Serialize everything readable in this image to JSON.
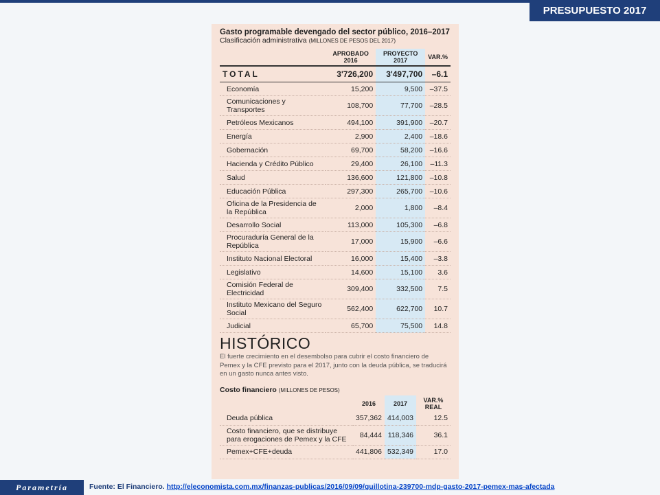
{
  "header": {
    "title": "PRESUPUESTO 2017"
  },
  "table1": {
    "title": "Gasto programable devengado del sector público, 2016–2017",
    "subtitle": "Clasificación administrativa",
    "subtitle_note": "(MILLONES DE PESOS DEL 2017)",
    "columns": [
      "APROBADO 2016",
      "PROYECTO 2017",
      "VAR.%"
    ],
    "total": [
      "TOTAL",
      "3'726,200",
      "3'497,700",
      "–6.1"
    ],
    "rows": [
      [
        "Economía",
        "15,200",
        "9,500",
        "–37.5"
      ],
      [
        "Comunicaciones y Transportes",
        "108,700",
        "77,700",
        "–28.5"
      ],
      [
        "Petróleos Mexicanos",
        "494,100",
        "391,900",
        "–20.7"
      ],
      [
        "Energía",
        "2,900",
        "2,400",
        "–18.6"
      ],
      [
        "Gobernación",
        "69,700",
        "58,200",
        "–16.6"
      ],
      [
        "Hacienda y Crédito Público",
        "29,400",
        "26,100",
        "–11.3"
      ],
      [
        "Salud",
        "136,600",
        "121,800",
        "–10.8"
      ],
      [
        "Educación Pública",
        "297,300",
        "265,700",
        "–10.6"
      ],
      [
        "Oficina de la Presidencia de la República",
        "2,000",
        "1,800",
        "–8.4"
      ],
      [
        "Desarrollo Social",
        "113,000",
        "105,300",
        "–6.8"
      ],
      [
        "Procuraduría General de la República",
        "17,000",
        "15,900",
        "–6.6"
      ],
      [
        "Instituto Nacional Electoral",
        "16,000",
        "15,400",
        "–3.8"
      ],
      [
        "Legislativo",
        "14,600",
        "15,100",
        "3.6"
      ],
      [
        "Comisión Federal de Electricidad",
        "309,400",
        "332,500",
        "7.5"
      ],
      [
        "Instituto Mexicano del Seguro Social",
        "562,400",
        "622,700",
        "10.7"
      ],
      [
        "Judicial",
        "65,700",
        "75,500",
        "14.8"
      ]
    ]
  },
  "historico": {
    "title": "HISTÓRICO",
    "text": "El fuerte crecimiento en el desembolso para cubrir el costo financiero de Pemex y la CFE previsto para el 2017, junto con la deuda pública, se traducirá en un gasto nunca antes visto."
  },
  "table2": {
    "title": "Costo financiero",
    "title_note": "(MILLONES DE PESOS)",
    "columns": [
      "2016",
      "2017",
      "VAR.% REAL"
    ],
    "rows": [
      [
        "Deuda pública",
        "357,362",
        "414,003",
        "12.5"
      ],
      [
        "Costo financiero, que se distribuye para erogaciones de Pemex y la CFE",
        "84,444",
        "118,346",
        "36.1"
      ],
      [
        "Pemex+CFE+deuda",
        "441,806",
        "532,349",
        "17.0"
      ]
    ]
  },
  "footer": {
    "brand": "Parametría",
    "source_label": "Fuente: El Financiero.",
    "source_url": "http://eleconomista.com.mx/finanzas-publicas/2016/09/09/guillotina-239700-mdp-gasto-2017-pemex-mas-afectada"
  }
}
